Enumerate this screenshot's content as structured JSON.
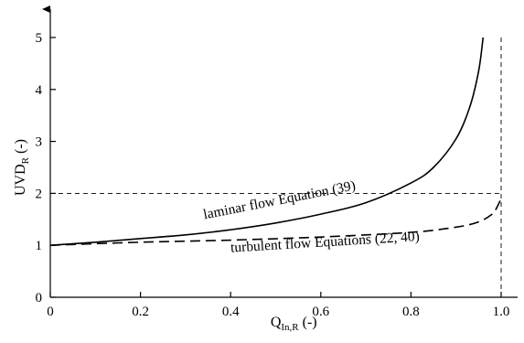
{
  "chart_data": {
    "type": "line",
    "xlim": [
      0,
      1.0
    ],
    "ylim": [
      0,
      5
    ],
    "x_ticks": [
      "0",
      "0.2",
      "0.4",
      "0.6",
      "0.8",
      "1.0"
    ],
    "y_ticks": [
      "0",
      "1",
      "2",
      "3",
      "4",
      "5"
    ],
    "xlabel": {
      "main": "Q",
      "sub": "In,R",
      "unit": " (-)"
    },
    "ylabel": {
      "main": "UVD",
      "sub": "R",
      "unit": " (-)"
    },
    "grid": false,
    "legend": "none",
    "series": [
      {
        "style": "solid",
        "x": [
          0.0,
          0.1,
          0.2,
          0.3,
          0.4,
          0.5,
          0.6,
          0.7,
          0.8,
          0.85,
          0.9,
          0.93,
          0.95,
          0.96
        ],
        "y": [
          1.0,
          1.06,
          1.13,
          1.2,
          1.3,
          1.43,
          1.6,
          1.82,
          2.2,
          2.5,
          3.05,
          3.65,
          4.35,
          5.0
        ]
      },
      {
        "style": "dashed",
        "x": [
          0.0,
          0.2,
          0.4,
          0.6,
          0.8,
          0.9,
          0.95,
          0.98,
          0.99,
          1.0
        ],
        "y": [
          1.0,
          1.06,
          1.1,
          1.16,
          1.25,
          1.35,
          1.45,
          1.6,
          1.72,
          1.9
        ]
      }
    ],
    "reference_lines": [
      {
        "orientation": "horizontal",
        "value": 2,
        "style": "dashed"
      },
      {
        "orientation": "vertical",
        "value": 1.0,
        "style": "dashed"
      }
    ],
    "annotations": [
      {
        "text": "laminar flow Equation (39)",
        "x": 0.51,
        "y": 1.79,
        "rotation": -11
      },
      {
        "text": "turbulent flow Equations (22, 40)",
        "x": 0.61,
        "y": 0.98,
        "rotation": -3.5
      }
    ]
  }
}
